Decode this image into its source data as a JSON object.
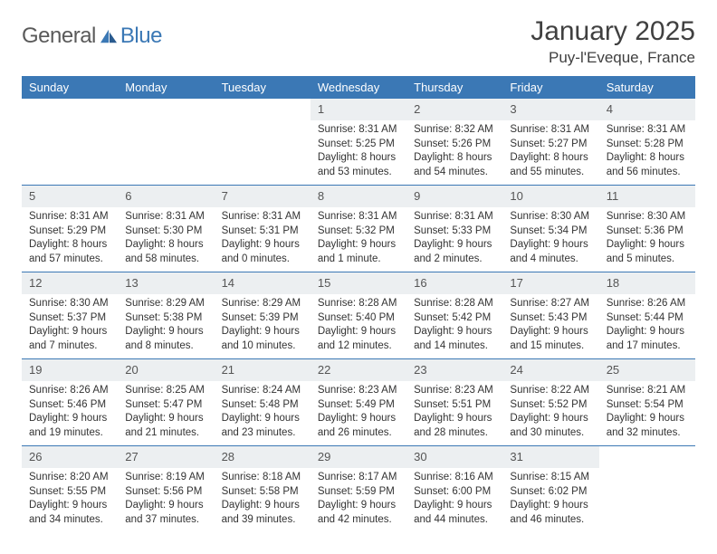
{
  "brand": {
    "part1": "General",
    "part2": "Blue"
  },
  "header": {
    "title": "January 2025",
    "location": "Puy-l'Eveque, France"
  },
  "style": {
    "accent_color": "#3b78b5",
    "daynum_bg": "#eceff1",
    "text_color": "#333333",
    "header_fontsize_pt": 22,
    "location_fontsize_pt": 13,
    "dayheader_fontsize_pt": 10,
    "cell_fontsize_pt": 8.5
  },
  "calendar": {
    "day_headers": [
      "Sunday",
      "Monday",
      "Tuesday",
      "Wednesday",
      "Thursday",
      "Friday",
      "Saturday"
    ],
    "weeks": [
      [
        null,
        null,
        null,
        {
          "n": "1",
          "sunrise": "8:31 AM",
          "sunset": "5:25 PM",
          "daylight": "8 hours and 53 minutes."
        },
        {
          "n": "2",
          "sunrise": "8:32 AM",
          "sunset": "5:26 PM",
          "daylight": "8 hours and 54 minutes."
        },
        {
          "n": "3",
          "sunrise": "8:31 AM",
          "sunset": "5:27 PM",
          "daylight": "8 hours and 55 minutes."
        },
        {
          "n": "4",
          "sunrise": "8:31 AM",
          "sunset": "5:28 PM",
          "daylight": "8 hours and 56 minutes."
        }
      ],
      [
        {
          "n": "5",
          "sunrise": "8:31 AM",
          "sunset": "5:29 PM",
          "daylight": "8 hours and 57 minutes."
        },
        {
          "n": "6",
          "sunrise": "8:31 AM",
          "sunset": "5:30 PM",
          "daylight": "8 hours and 58 minutes."
        },
        {
          "n": "7",
          "sunrise": "8:31 AM",
          "sunset": "5:31 PM",
          "daylight": "9 hours and 0 minutes."
        },
        {
          "n": "8",
          "sunrise": "8:31 AM",
          "sunset": "5:32 PM",
          "daylight": "9 hours and 1 minute."
        },
        {
          "n": "9",
          "sunrise": "8:31 AM",
          "sunset": "5:33 PM",
          "daylight": "9 hours and 2 minutes."
        },
        {
          "n": "10",
          "sunrise": "8:30 AM",
          "sunset": "5:34 PM",
          "daylight": "9 hours and 4 minutes."
        },
        {
          "n": "11",
          "sunrise": "8:30 AM",
          "sunset": "5:36 PM",
          "daylight": "9 hours and 5 minutes."
        }
      ],
      [
        {
          "n": "12",
          "sunrise": "8:30 AM",
          "sunset": "5:37 PM",
          "daylight": "9 hours and 7 minutes."
        },
        {
          "n": "13",
          "sunrise": "8:29 AM",
          "sunset": "5:38 PM",
          "daylight": "9 hours and 8 minutes."
        },
        {
          "n": "14",
          "sunrise": "8:29 AM",
          "sunset": "5:39 PM",
          "daylight": "9 hours and 10 minutes."
        },
        {
          "n": "15",
          "sunrise": "8:28 AM",
          "sunset": "5:40 PM",
          "daylight": "9 hours and 12 minutes."
        },
        {
          "n": "16",
          "sunrise": "8:28 AM",
          "sunset": "5:42 PM",
          "daylight": "9 hours and 14 minutes."
        },
        {
          "n": "17",
          "sunrise": "8:27 AM",
          "sunset": "5:43 PM",
          "daylight": "9 hours and 15 minutes."
        },
        {
          "n": "18",
          "sunrise": "8:26 AM",
          "sunset": "5:44 PM",
          "daylight": "9 hours and 17 minutes."
        }
      ],
      [
        {
          "n": "19",
          "sunrise": "8:26 AM",
          "sunset": "5:46 PM",
          "daylight": "9 hours and 19 minutes."
        },
        {
          "n": "20",
          "sunrise": "8:25 AM",
          "sunset": "5:47 PM",
          "daylight": "9 hours and 21 minutes."
        },
        {
          "n": "21",
          "sunrise": "8:24 AM",
          "sunset": "5:48 PM",
          "daylight": "9 hours and 23 minutes."
        },
        {
          "n": "22",
          "sunrise": "8:23 AM",
          "sunset": "5:49 PM",
          "daylight": "9 hours and 26 minutes."
        },
        {
          "n": "23",
          "sunrise": "8:23 AM",
          "sunset": "5:51 PM",
          "daylight": "9 hours and 28 minutes."
        },
        {
          "n": "24",
          "sunrise": "8:22 AM",
          "sunset": "5:52 PM",
          "daylight": "9 hours and 30 minutes."
        },
        {
          "n": "25",
          "sunrise": "8:21 AM",
          "sunset": "5:54 PM",
          "daylight": "9 hours and 32 minutes."
        }
      ],
      [
        {
          "n": "26",
          "sunrise": "8:20 AM",
          "sunset": "5:55 PM",
          "daylight": "9 hours and 34 minutes."
        },
        {
          "n": "27",
          "sunrise": "8:19 AM",
          "sunset": "5:56 PM",
          "daylight": "9 hours and 37 minutes."
        },
        {
          "n": "28",
          "sunrise": "8:18 AM",
          "sunset": "5:58 PM",
          "daylight": "9 hours and 39 minutes."
        },
        {
          "n": "29",
          "sunrise": "8:17 AM",
          "sunset": "5:59 PM",
          "daylight": "9 hours and 42 minutes."
        },
        {
          "n": "30",
          "sunrise": "8:16 AM",
          "sunset": "6:00 PM",
          "daylight": "9 hours and 44 minutes."
        },
        {
          "n": "31",
          "sunrise": "8:15 AM",
          "sunset": "6:02 PM",
          "daylight": "9 hours and 46 minutes."
        },
        null
      ]
    ],
    "labels": {
      "sunrise": "Sunrise:",
      "sunset": "Sunset:",
      "daylight": "Daylight:"
    }
  }
}
